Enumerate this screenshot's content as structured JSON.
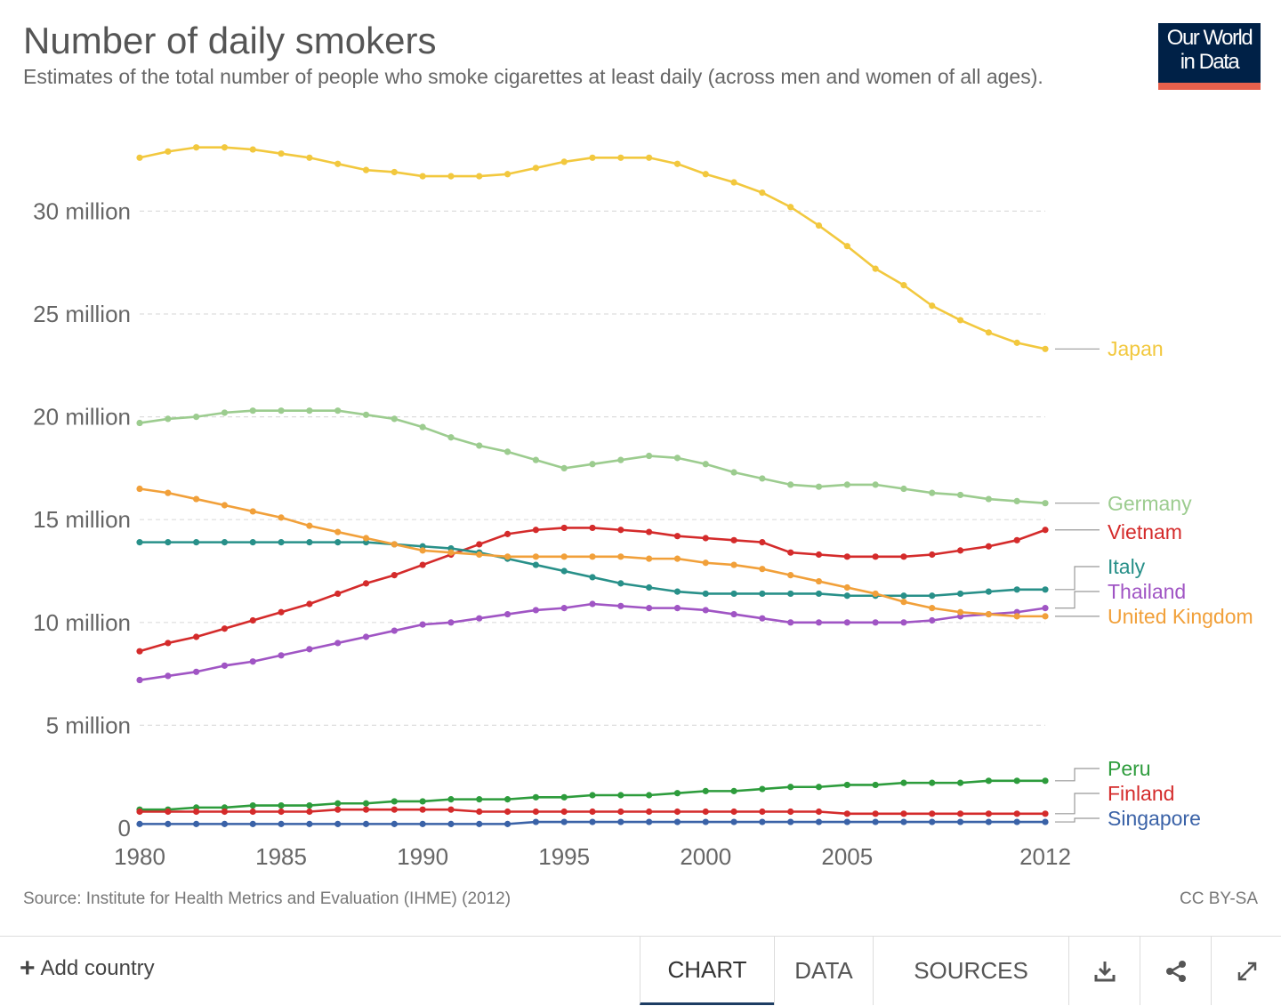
{
  "header": {
    "title": "Number of daily smokers",
    "subtitle": "Estimates of the total number of people who smoke cigarettes at least daily (across men and women of all ages).",
    "logo_text": "Our World\nin Data"
  },
  "footer": {
    "source": "Source: Institute for Health Metrics and Evaluation (IHME) (2012)",
    "license": "CC BY-SA",
    "add_country": "Add country",
    "tabs": [
      "CHART",
      "DATA",
      "SOURCES"
    ],
    "icons": [
      "download-icon",
      "share-icon",
      "expand-icon"
    ]
  },
  "chart_data": {
    "type": "line",
    "title": "Number of daily smokers",
    "xlabel": "",
    "ylabel": "",
    "xlim": [
      1980,
      2012
    ],
    "ylim": [
      0,
      33500000
    ],
    "x_ticks": [
      "1980",
      "1985",
      "1990",
      "1995",
      "2000",
      "2005",
      "2012"
    ],
    "y_ticks": [
      "0",
      "5 million",
      "10 million",
      "15 million",
      "20 million",
      "25 million",
      "30 million"
    ],
    "grid": "horizontal dashed",
    "legend": "right, line-end labels",
    "x": [
      1980,
      1981,
      1982,
      1983,
      1984,
      1985,
      1986,
      1987,
      1988,
      1989,
      1990,
      1991,
      1992,
      1993,
      1994,
      1995,
      1996,
      1997,
      1998,
      1999,
      2000,
      2001,
      2002,
      2003,
      2004,
      2005,
      2006,
      2007,
      2008,
      2009,
      2010,
      2011,
      2012
    ],
    "series": [
      {
        "name": "Japan",
        "color": "#f2c83e",
        "values": [
          32600000,
          32900000,
          33100000,
          33100000,
          33000000,
          32800000,
          32600000,
          32300000,
          32000000,
          31900000,
          31700000,
          31700000,
          31700000,
          31800000,
          32100000,
          32400000,
          32600000,
          32600000,
          32600000,
          32300000,
          31800000,
          31400000,
          30900000,
          30200000,
          29300000,
          28300000,
          27200000,
          26400000,
          25400000,
          24700000,
          24100000,
          23600000,
          23300000
        ]
      },
      {
        "name": "Germany",
        "color": "#9ccc8f",
        "values": [
          19700000,
          19900000,
          20000000,
          20200000,
          20300000,
          20300000,
          20300000,
          20300000,
          20100000,
          19900000,
          19500000,
          19000000,
          18600000,
          18300000,
          17900000,
          17500000,
          17700000,
          17900000,
          18100000,
          18000000,
          17700000,
          17300000,
          17000000,
          16700000,
          16600000,
          16700000,
          16700000,
          16500000,
          16300000,
          16200000,
          16000000,
          15900000,
          15800000
        ]
      },
      {
        "name": "Vietnam",
        "color": "#d42b2b",
        "values": [
          8600000,
          9000000,
          9300000,
          9700000,
          10100000,
          10500000,
          10900000,
          11400000,
          11900000,
          12300000,
          12800000,
          13300000,
          13800000,
          14300000,
          14500000,
          14600000,
          14600000,
          14500000,
          14400000,
          14200000,
          14100000,
          14000000,
          13900000,
          13400000,
          13300000,
          13200000,
          13200000,
          13200000,
          13300000,
          13500000,
          13700000,
          14000000,
          14500000
        ]
      },
      {
        "name": "Italy",
        "color": "#289089",
        "values": [
          13900000,
          13900000,
          13900000,
          13900000,
          13900000,
          13900000,
          13900000,
          13900000,
          13900000,
          13800000,
          13700000,
          13600000,
          13400000,
          13100000,
          12800000,
          12500000,
          12200000,
          11900000,
          11700000,
          11500000,
          11400000,
          11400000,
          11400000,
          11400000,
          11400000,
          11300000,
          11300000,
          11300000,
          11300000,
          11400000,
          11500000,
          11600000,
          11600000
        ]
      },
      {
        "name": "Thailand",
        "color": "#a055c4",
        "values": [
          7200000,
          7400000,
          7600000,
          7900000,
          8100000,
          8400000,
          8700000,
          9000000,
          9300000,
          9600000,
          9900000,
          10000000,
          10200000,
          10400000,
          10600000,
          10700000,
          10900000,
          10800000,
          10700000,
          10700000,
          10600000,
          10400000,
          10200000,
          10000000,
          10000000,
          10000000,
          10000000,
          10000000,
          10100000,
          10300000,
          10400000,
          10500000,
          10700000
        ]
      },
      {
        "name": "United Kingdom",
        "color": "#f1a03a",
        "values": [
          16500000,
          16300000,
          16000000,
          15700000,
          15400000,
          15100000,
          14700000,
          14400000,
          14100000,
          13800000,
          13500000,
          13400000,
          13300000,
          13200000,
          13200000,
          13200000,
          13200000,
          13200000,
          13100000,
          13100000,
          12900000,
          12800000,
          12600000,
          12300000,
          12000000,
          11700000,
          11400000,
          11000000,
          10700000,
          10500000,
          10400000,
          10300000,
          10300000
        ]
      },
      {
        "name": "Peru",
        "color": "#2d9c3c",
        "values": [
          900000,
          900000,
          1000000,
          1000000,
          1100000,
          1100000,
          1100000,
          1200000,
          1200000,
          1300000,
          1300000,
          1400000,
          1400000,
          1400000,
          1500000,
          1500000,
          1600000,
          1600000,
          1600000,
          1700000,
          1800000,
          1800000,
          1900000,
          2000000,
          2000000,
          2100000,
          2100000,
          2200000,
          2200000,
          2200000,
          2300000,
          2300000,
          2300000
        ]
      },
      {
        "name": "Finland",
        "color": "#d42b2b",
        "values": [
          800000,
          800000,
          800000,
          800000,
          800000,
          800000,
          800000,
          900000,
          900000,
          900000,
          900000,
          900000,
          800000,
          800000,
          800000,
          800000,
          800000,
          800000,
          800000,
          800000,
          800000,
          800000,
          800000,
          800000,
          800000,
          700000,
          700000,
          700000,
          700000,
          700000,
          700000,
          700000,
          700000
        ]
      },
      {
        "name": "Singapore",
        "color": "#3a62a7",
        "values": [
          200000,
          200000,
          200000,
          200000,
          200000,
          200000,
          200000,
          200000,
          200000,
          200000,
          200000,
          200000,
          200000,
          200000,
          300000,
          300000,
          300000,
          300000,
          300000,
          300000,
          300000,
          300000,
          300000,
          300000,
          300000,
          300000,
          300000,
          300000,
          300000,
          300000,
          300000,
          300000,
          300000
        ]
      }
    ]
  }
}
